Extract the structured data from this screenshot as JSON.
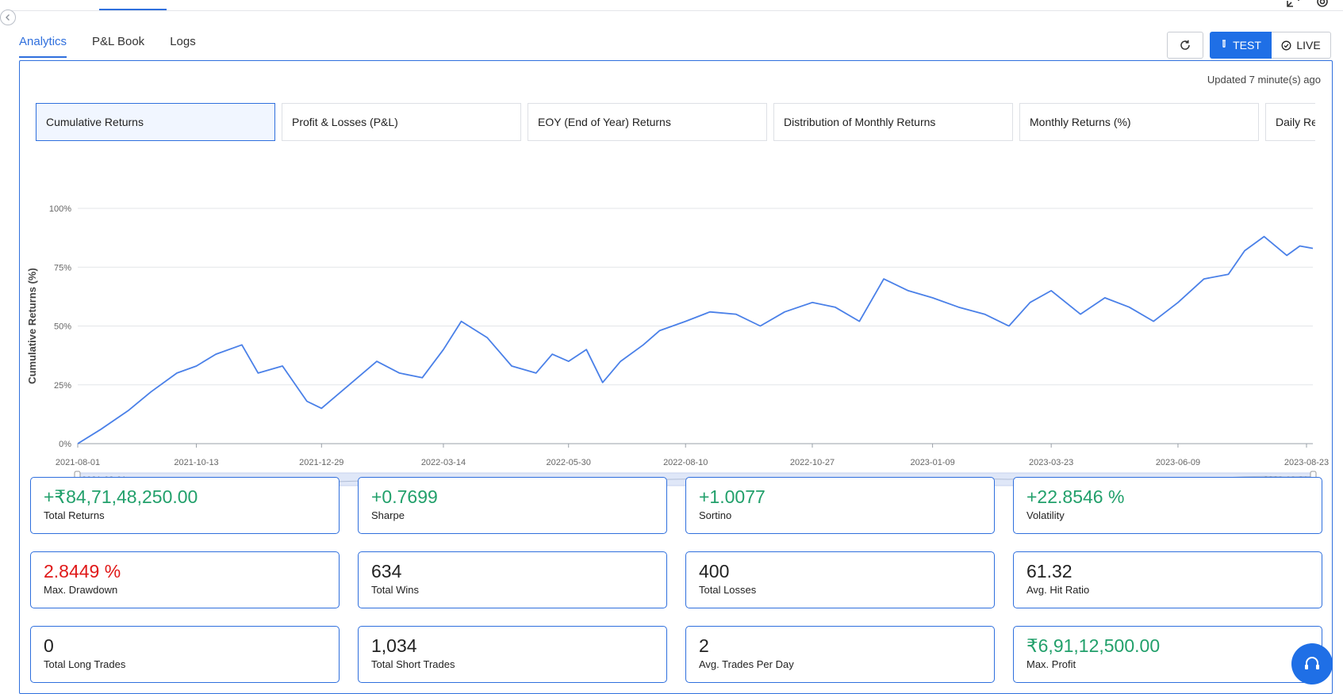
{
  "tabs": [
    "Analytics",
    "P&L Book",
    "Logs"
  ],
  "controls": {
    "test_label": "TEST",
    "live_label": "LIVE"
  },
  "updated_text": "Updated 7 minute(s) ago",
  "chart_tabs": [
    "Cumulative Returns",
    "Profit & Losses (P&L)",
    "EOY (End of Year) Returns",
    "Distribution of Monthly Returns",
    "Monthly Returns (%)",
    "Daily Returns"
  ],
  "icons": [
    "chevron-left-icon",
    "expand-icon",
    "gear-icon",
    "refresh-icon",
    "flask-icon",
    "check-circle-icon",
    "headset-icon"
  ],
  "colors": {
    "accent": "#1f6fe6",
    "line": "#4a80e8",
    "positive": "#22a06b",
    "negative": "#e01818"
  },
  "chart_data": {
    "type": "line",
    "title": "",
    "xlabel": "",
    "ylabel": "Cumulative Returns (%)",
    "x_ticks": [
      "2021-08-01",
      "2021-10-13",
      "2021-12-29",
      "2022-03-14",
      "2022-05-30",
      "2022-08-10",
      "2022-10-27",
      "2023-01-09",
      "2023-03-23",
      "2023-06-09",
      "2023-08-23"
    ],
    "y_ticks": [
      "0%",
      "25%",
      "50%",
      "75%",
      "100%"
    ],
    "ylim": [
      0,
      100
    ],
    "grid": true,
    "range_slider": {
      "start": "2021-08-01",
      "end": "2023-08-31"
    },
    "series": [
      {
        "x": [
          "2021-08-01",
          "2021-08-15",
          "2021-09-01",
          "2021-09-15",
          "2021-10-01",
          "2021-10-13",
          "2021-10-25",
          "2021-11-10",
          "2021-11-20",
          "2021-12-05",
          "2021-12-20",
          "2021-12-29",
          "2022-01-15",
          "2022-02-01",
          "2022-02-15",
          "2022-03-01",
          "2022-03-14",
          "2022-03-25",
          "2022-04-10",
          "2022-04-25",
          "2022-05-10",
          "2022-05-20",
          "2022-05-30",
          "2022-06-10",
          "2022-06-20",
          "2022-07-01",
          "2022-07-15",
          "2022-07-25",
          "2022-08-10",
          "2022-08-25",
          "2022-09-10",
          "2022-09-25",
          "2022-10-10",
          "2022-10-27",
          "2022-11-10",
          "2022-11-25",
          "2022-12-10",
          "2022-12-25",
          "2023-01-09",
          "2023-01-25",
          "2023-02-10",
          "2023-02-25",
          "2023-03-10",
          "2023-03-23",
          "2023-04-10",
          "2023-04-25",
          "2023-05-10",
          "2023-05-25",
          "2023-06-09",
          "2023-06-25",
          "2023-07-10",
          "2023-07-20",
          "2023-08-01",
          "2023-08-15",
          "2023-08-23",
          "2023-08-31"
        ],
        "y": [
          0,
          6,
          14,
          22,
          30,
          33,
          38,
          42,
          30,
          33,
          18,
          15,
          25,
          35,
          30,
          28,
          40,
          52,
          45,
          33,
          30,
          38,
          35,
          40,
          26,
          35,
          42,
          48,
          52,
          56,
          55,
          50,
          56,
          60,
          58,
          52,
          70,
          65,
          62,
          58,
          55,
          50,
          60,
          65,
          55,
          62,
          58,
          52,
          60,
          70,
          72,
          82,
          88,
          80,
          84,
          83
        ]
      }
    ]
  },
  "metrics": [
    {
      "value": "+₹84,71,48,250.00",
      "label": "Total Returns",
      "tone": "pos"
    },
    {
      "value": "+0.7699",
      "label": "Sharpe",
      "tone": "pos"
    },
    {
      "value": "+1.0077",
      "label": "Sortino",
      "tone": "pos"
    },
    {
      "value": "+22.8546 %",
      "label": "Volatility",
      "tone": "pos"
    },
    {
      "value": "2.8449 %",
      "label": "Max. Drawdown",
      "tone": "neg"
    },
    {
      "value": "634",
      "label": "Total Wins",
      "tone": "neu"
    },
    {
      "value": "400",
      "label": "Total Losses",
      "tone": "neu"
    },
    {
      "value": "61.32",
      "label": "Avg. Hit Ratio",
      "tone": "neu"
    },
    {
      "value": "0",
      "label": "Total Long Trades",
      "tone": "neu"
    },
    {
      "value": "1,034",
      "label": "Total Short Trades",
      "tone": "neu"
    },
    {
      "value": "2",
      "label": "Avg. Trades Per Day",
      "tone": "neu"
    },
    {
      "value": "₹6,91,12,500.00",
      "label": "Max. Profit",
      "tone": "pos"
    }
  ]
}
